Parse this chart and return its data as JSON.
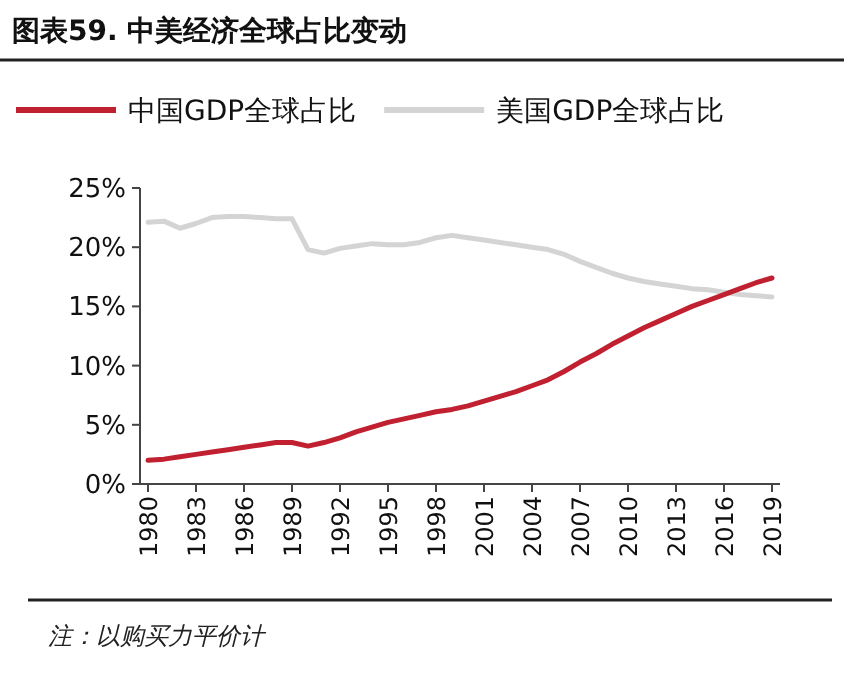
{
  "chart_data": {
    "type": "line",
    "title": "图表59.  中美经济全球占比变动",
    "categories": [
      "1980",
      null,
      null,
      "1983",
      null,
      null,
      "1986",
      null,
      null,
      "1989",
      null,
      null,
      "1992",
      null,
      null,
      "1995",
      null,
      null,
      "1998",
      null,
      null,
      "2001",
      null,
      null,
      "2004",
      null,
      null,
      "2007",
      null,
      null,
      "2010",
      null,
      null,
      "2013",
      null,
      null,
      "2016",
      null,
      null,
      "2019"
    ],
    "series": [
      {
        "name": "中国GDP全球占比",
        "color": "#c0202f",
        "values": [
          2.0,
          2.1,
          2.3,
          2.5,
          2.7,
          2.9,
          3.1,
          3.3,
          3.5,
          3.5,
          3.2,
          3.5,
          3.9,
          4.4,
          4.8,
          5.2,
          5.5,
          5.8,
          6.1,
          6.3,
          6.6,
          7.0,
          7.4,
          7.8,
          8.3,
          8.8,
          9.5,
          10.3,
          11.0,
          11.8,
          12.5,
          13.2,
          13.8,
          14.4,
          15.0,
          15.5,
          16.0,
          16.5,
          17.0,
          17.4
        ]
      },
      {
        "name": "美国GDP全球占比",
        "color": "#d4d4d4",
        "values": [
          22.1,
          22.2,
          21.6,
          22.0,
          22.5,
          22.6,
          22.6,
          22.5,
          22.4,
          22.4,
          19.8,
          19.5,
          19.9,
          20.1,
          20.3,
          20.2,
          20.2,
          20.4,
          20.8,
          21.0,
          20.8,
          20.6,
          20.4,
          20.2,
          20.0,
          19.8,
          19.4,
          18.8,
          18.3,
          17.8,
          17.4,
          17.1,
          16.9,
          16.7,
          16.5,
          16.4,
          16.2,
          16.0,
          15.9,
          15.8
        ]
      }
    ],
    "ylim": [
      0,
      25
    ],
    "yticks": [
      {
        "value": 0,
        "label": "0%"
      },
      {
        "value": 5,
        "label": "5%"
      },
      {
        "value": 10,
        "label": "10%"
      },
      {
        "value": 15,
        "label": "15%"
      },
      {
        "value": 20,
        "label": "20%"
      },
      {
        "value": 25,
        "label": "25%"
      }
    ],
    "grid": false,
    "legend": "top",
    "marker": "none",
    "line_style": "solid",
    "annotations": [
      "注：以购买力平价计"
    ]
  }
}
